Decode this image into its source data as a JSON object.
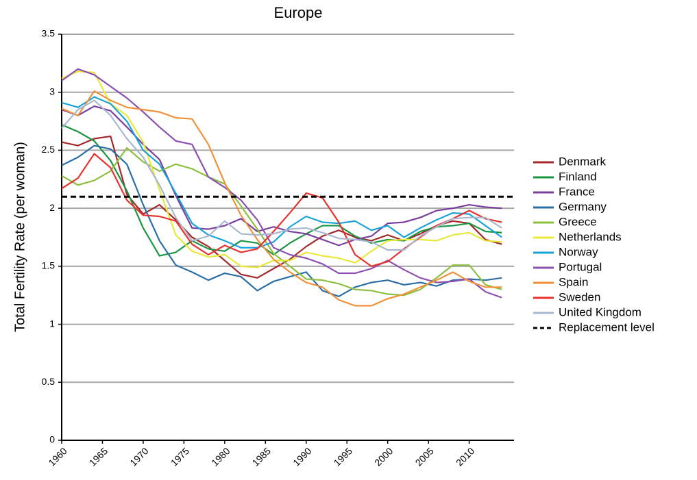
{
  "chart_data": {
    "type": "line",
    "title": "Europe",
    "y_label": "Total Fertility Rate (per woman)",
    "x": [
      1960,
      1962,
      1964,
      1966,
      1968,
      1970,
      1972,
      1974,
      1976,
      1978,
      1980,
      1982,
      1984,
      1986,
      1988,
      1990,
      1992,
      1994,
      1996,
      1998,
      2000,
      2002,
      2004,
      2006,
      2008,
      2010,
      2012,
      2014
    ],
    "xlim": [
      1960,
      2015.5
    ],
    "xticks": [
      1960,
      1965,
      1970,
      1975,
      1980,
      1985,
      1990,
      1995,
      2000,
      2005,
      2010
    ],
    "ylim": [
      0,
      3.5
    ],
    "yticks": [
      0,
      0.5,
      1,
      1.5,
      2,
      2.5,
      3,
      3.5
    ],
    "grid": true,
    "series": [
      {
        "name": "Denmark",
        "color": "#a3282b",
        "values": [
          2.57,
          2.54,
          2.6,
          2.62,
          2.12,
          1.95,
          2.03,
          1.9,
          1.75,
          1.67,
          1.55,
          1.43,
          1.4,
          1.48,
          1.56,
          1.67,
          1.76,
          1.81,
          1.75,
          1.72,
          1.77,
          1.72,
          1.78,
          1.85,
          1.89,
          1.87,
          1.73,
          1.69
        ]
      },
      {
        "name": "Finland",
        "color": "#1a9641",
        "values": [
          2.72,
          2.66,
          2.58,
          2.41,
          2.15,
          1.83,
          1.59,
          1.62,
          1.72,
          1.65,
          1.63,
          1.72,
          1.7,
          1.6,
          1.7,
          1.78,
          1.85,
          1.85,
          1.76,
          1.7,
          1.73,
          1.72,
          1.8,
          1.84,
          1.85,
          1.87,
          1.8,
          1.79
        ]
      },
      {
        "name": "France",
        "color": "#7a3e9d",
        "values": [
          2.85,
          2.8,
          2.88,
          2.84,
          2.7,
          2.55,
          2.42,
          2.11,
          1.83,
          1.82,
          1.85,
          1.91,
          1.8,
          1.84,
          1.8,
          1.78,
          1.73,
          1.68,
          1.73,
          1.76,
          1.87,
          1.88,
          1.92,
          1.98,
          2.0,
          2.03,
          2.01,
          2.0
        ]
      },
      {
        "name": "Germany",
        "color": "#2a6ea6",
        "values": [
          2.37,
          2.44,
          2.54,
          2.51,
          2.38,
          2.03,
          1.72,
          1.51,
          1.45,
          1.38,
          1.44,
          1.41,
          1.29,
          1.37,
          1.41,
          1.45,
          1.29,
          1.24,
          1.32,
          1.36,
          1.38,
          1.34,
          1.36,
          1.33,
          1.38,
          1.39,
          1.38,
          1.4
        ]
      },
      {
        "name": "Greece",
        "color": "#8cbf3f",
        "values": [
          2.28,
          2.2,
          2.24,
          2.32,
          2.52,
          2.4,
          2.32,
          2.38,
          2.34,
          2.27,
          2.21,
          2.02,
          1.82,
          1.61,
          1.5,
          1.39,
          1.38,
          1.35,
          1.3,
          1.29,
          1.26,
          1.25,
          1.3,
          1.4,
          1.51,
          1.51,
          1.34,
          1.3
        ]
      },
      {
        "name": "Netherlands",
        "color": "#e8e83a",
        "values": [
          3.12,
          3.18,
          3.17,
          2.9,
          2.8,
          2.57,
          2.16,
          1.77,
          1.63,
          1.58,
          1.6,
          1.5,
          1.49,
          1.55,
          1.55,
          1.62,
          1.59,
          1.57,
          1.53,
          1.63,
          1.72,
          1.73,
          1.73,
          1.72,
          1.77,
          1.79,
          1.72,
          1.71
        ]
      },
      {
        "name": "Norway",
        "color": "#1aa3d9",
        "values": [
          2.91,
          2.87,
          2.96,
          2.9,
          2.75,
          2.5,
          2.38,
          2.13,
          1.87,
          1.77,
          1.72,
          1.66,
          1.66,
          1.71,
          1.84,
          1.93,
          1.88,
          1.87,
          1.89,
          1.81,
          1.85,
          1.75,
          1.83,
          1.9,
          1.96,
          1.95,
          1.85,
          1.75
        ]
      },
      {
        "name": "Portugal",
        "color": "#8e4fb3",
        "values": [
          3.1,
          3.2,
          3.15,
          3.05,
          2.95,
          2.83,
          2.7,
          2.58,
          2.55,
          2.27,
          2.18,
          2.07,
          1.9,
          1.66,
          1.6,
          1.57,
          1.52,
          1.44,
          1.44,
          1.48,
          1.55,
          1.47,
          1.4,
          1.36,
          1.37,
          1.39,
          1.28,
          1.23
        ]
      },
      {
        "name": "Spain",
        "color": "#f0913a",
        "values": [
          2.86,
          2.8,
          3.01,
          2.93,
          2.87,
          2.85,
          2.83,
          2.78,
          2.77,
          2.55,
          2.22,
          1.94,
          1.73,
          1.56,
          1.45,
          1.36,
          1.32,
          1.21,
          1.16,
          1.16,
          1.22,
          1.26,
          1.32,
          1.38,
          1.45,
          1.37,
          1.32,
          1.32
        ]
      },
      {
        "name": "Sweden",
        "color": "#e8322f",
        "values": [
          2.17,
          2.26,
          2.47,
          2.35,
          2.07,
          1.94,
          1.93,
          1.89,
          1.69,
          1.6,
          1.68,
          1.62,
          1.65,
          1.8,
          1.96,
          2.13,
          2.09,
          1.88,
          1.6,
          1.5,
          1.54,
          1.65,
          1.75,
          1.85,
          1.91,
          1.98,
          1.91,
          1.88
        ]
      },
      {
        "name": "United Kingdom",
        "color": "#a9b8cf",
        "values": [
          2.69,
          2.85,
          2.93,
          2.8,
          2.6,
          2.44,
          2.2,
          1.92,
          1.72,
          1.76,
          1.89,
          1.78,
          1.77,
          1.78,
          1.82,
          1.83,
          1.79,
          1.74,
          1.73,
          1.71,
          1.64,
          1.64,
          1.76,
          1.84,
          1.91,
          1.92,
          1.92,
          1.83
        ]
      }
    ],
    "reference_line": {
      "name": "Replacement level",
      "value": 2.1,
      "color": "#000000"
    }
  }
}
